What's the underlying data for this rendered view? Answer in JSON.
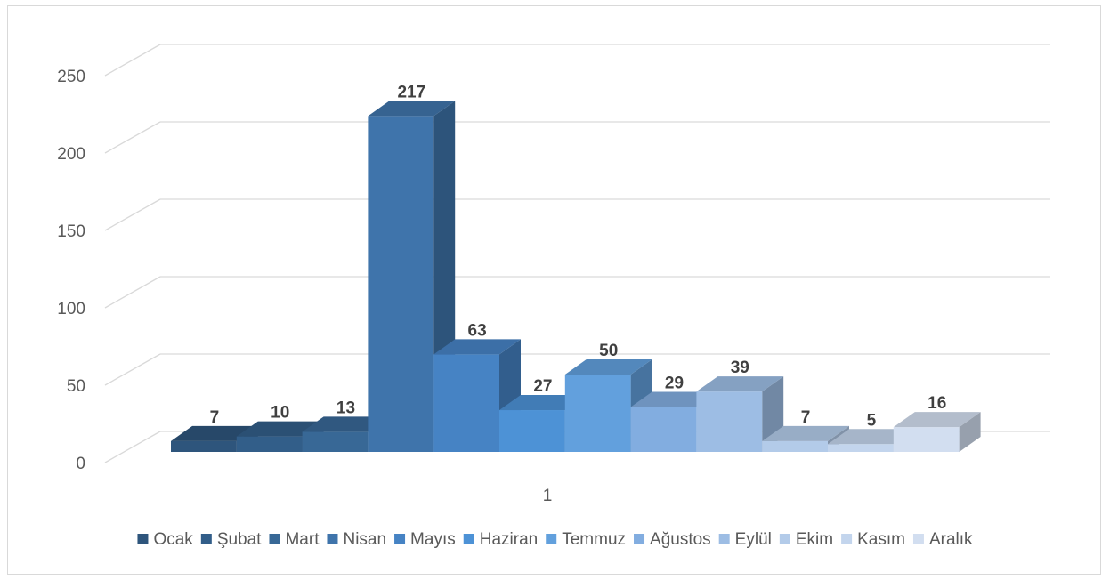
{
  "chart_data": {
    "type": "bar",
    "categories": [
      "1"
    ],
    "series": [
      {
        "name": "Ocak",
        "values": [
          7
        ],
        "color": "#2e557c"
      },
      {
        "name": "Şubat",
        "values": [
          10
        ],
        "color": "#325e89"
      },
      {
        "name": "Mart",
        "values": [
          13
        ],
        "color": "#386896"
      },
      {
        "name": "Nisan",
        "values": [
          217
        ],
        "color": "#3f74ab"
      },
      {
        "name": "Mayıs",
        "values": [
          63
        ],
        "color": "#4683c4"
      },
      {
        "name": "Haziran",
        "values": [
          27
        ],
        "color": "#4d92d6"
      },
      {
        "name": "Temmuz",
        "values": [
          50
        ],
        "color": "#62a0dd"
      },
      {
        "name": "Ağustos",
        "values": [
          29
        ],
        "color": "#82ade0"
      },
      {
        "name": "Eylül",
        "values": [
          39
        ],
        "color": "#9dbde4"
      },
      {
        "name": "Ekim",
        "values": [
          7
        ],
        "color": "#b3cbe9"
      },
      {
        "name": "Kasım",
        "values": [
          5
        ],
        "color": "#c3d5ed"
      },
      {
        "name": "Aralık",
        "values": [
          16
        ],
        "color": "#d2def0"
      }
    ],
    "yticks": [
      0,
      50,
      100,
      150,
      200,
      250
    ],
    "ylim": [
      0,
      250
    ],
    "grid": true,
    "legend_position": "bottom",
    "data_labels": true
  }
}
